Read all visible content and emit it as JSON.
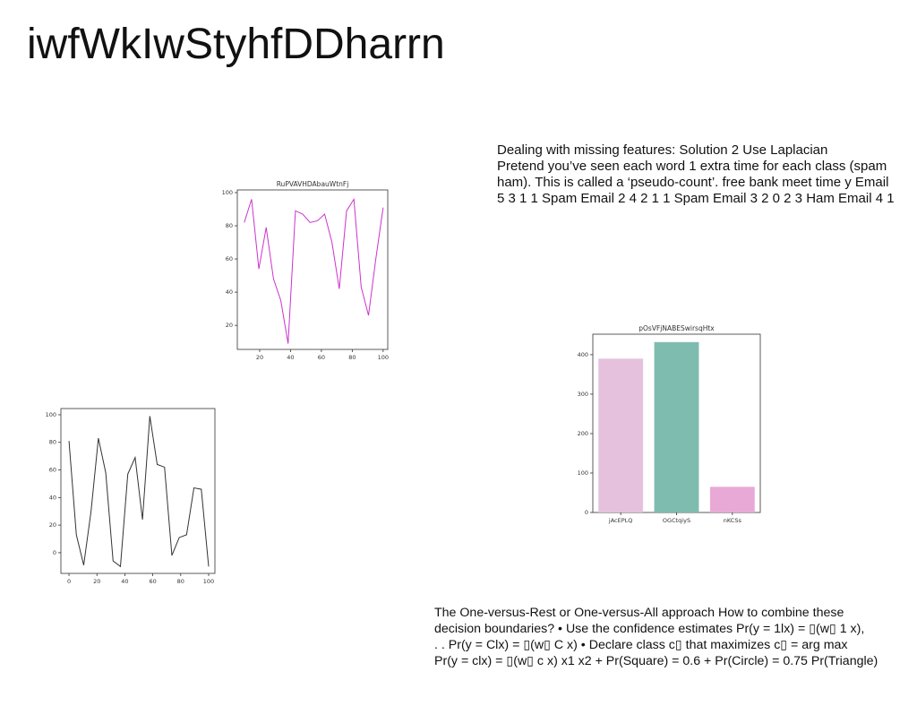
{
  "title": "iwfWkIwStyhfDDharrn",
  "paragraphs": [
    [
      "Dealing with missing features: Solution 2 Use Laplacian",
      "Pretend you’ve seen each word 1 extra time for each class (spam",
      "ham). This is called a ‘pseudo-count’. free bank meet time y Email",
      "5 3 1 1 Spam Email 2 4 2 1 1 Spam Email 3 2 0 2 3 Ham Email 4 1"
    ],
    [
      "The One-versus-Rest or One-versus-All approach How to combine these",
      "decision boundaries? • Use the confidence estimates Pr(y = 1lx) = ▯(w▯ 1 x),",
      ". . Pr(y = Clx) = ▯(w▯ C x) • Declare class c▯ that maximizes c▯ = arg max",
      "Pr(y = clx) = ▯(w▯ c x) x1 x2 + Pr(Square) = 0.6 + Pr(Circle) = 0.75 Pr(Triangle)"
    ]
  ],
  "chart_data": [
    {
      "type": "line",
      "title": "RuPVAVHDAbauWtnFj",
      "color": "#cc33cc",
      "x": [
        10,
        14.74,
        19.47,
        24.21,
        28.95,
        33.68,
        38.42,
        43.16,
        47.89,
        52.63,
        57.37,
        62.11,
        66.84,
        71.58,
        76.32,
        81.05,
        85.79,
        90.53,
        95.26,
        100
      ],
      "values": [
        82,
        96,
        54,
        79,
        48,
        35,
        9,
        89,
        87,
        82,
        83,
        87,
        70,
        42,
        89,
        96,
        43,
        26,
        60,
        91
      ],
      "xlim": [
        5.5,
        103
      ],
      "ylim": [
        5.5,
        101.6
      ],
      "xticks": [
        20,
        40,
        60,
        80,
        100
      ],
      "yticks": [
        20,
        40,
        60,
        80,
        100
      ]
    },
    {
      "type": "bar",
      "title": "pOsVFjNABESwirsqHtx",
      "categories": [
        "jAcEPLQ",
        "OGCtqiyS",
        "nKCSs"
      ],
      "values": [
        390,
        432,
        65
      ],
      "colors": [
        "#e5c1dd",
        "#7fbcb0",
        "#e8a9d6"
      ],
      "ylim": [
        0,
        452
      ],
      "yticks": [
        0,
        100,
        200,
        300,
        400
      ]
    },
    {
      "type": "line",
      "color": "#333333",
      "x": [
        0,
        5.26,
        10.53,
        15.79,
        21.05,
        26.32,
        31.58,
        36.84,
        42.11,
        47.37,
        52.63,
        57.89,
        63.16,
        68.42,
        73.68,
        78.95,
        84.21,
        89.47,
        94.74,
        100
      ],
      "values": [
        81,
        13,
        -9,
        30,
        83,
        58,
        -6,
        -10,
        57,
        69,
        24,
        99,
        64,
        62,
        -2,
        11,
        13,
        47,
        46,
        -10
      ],
      "xlim": [
        -5.8,
        104.5
      ],
      "ylim": [
        -15,
        104.5
      ],
      "xticks": [
        0,
        20,
        40,
        60,
        80,
        100
      ],
      "yticks": [
        0,
        20,
        40,
        60,
        80,
        100
      ]
    }
  ]
}
